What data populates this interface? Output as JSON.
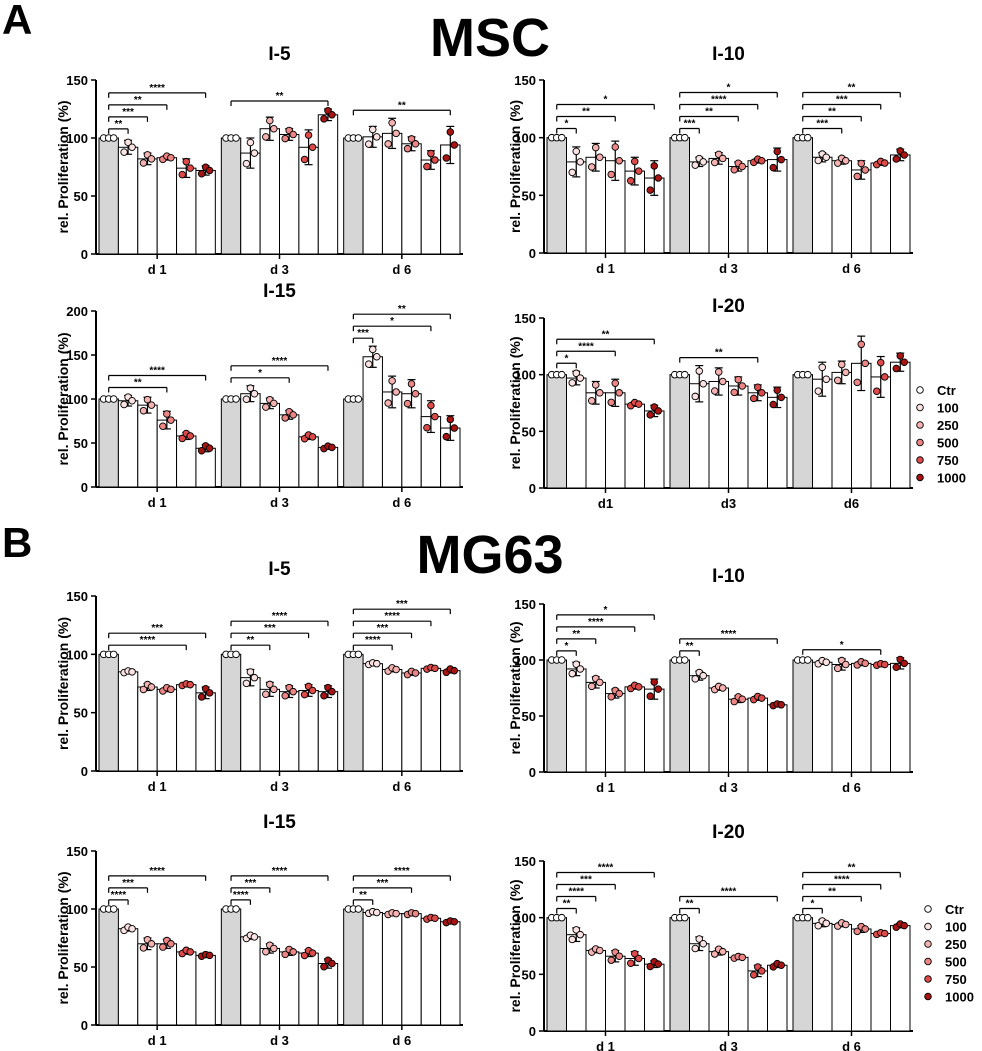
{
  "figure": {
    "panels": [
      {
        "letter": "A",
        "title": "MSC"
      },
      {
        "letter": "B",
        "title": "MG63"
      }
    ],
    "legend": {
      "labels": [
        "Ctr",
        "100",
        "250",
        "500",
        "750",
        "1000"
      ],
      "colors": [
        "#ffffff",
        "#fbe3e3",
        "#f6b1b1",
        "#ee8585",
        "#dd4a4a",
        "#a61414"
      ]
    }
  },
  "chart_data": [
    {
      "type": "bar",
      "panel": "MSC",
      "title": "I-5",
      "ylabel": "rel. Proliferation (%)",
      "ylim": [
        0,
        150
      ],
      "yticks": [
        0,
        50,
        100,
        150
      ],
      "groups": [
        "d 1",
        "d 3",
        "d 6"
      ],
      "series_names": [
        "Ctr",
        "100",
        "250",
        "500",
        "750",
        "1000"
      ],
      "values": [
        [
          100,
          92,
          82,
          83,
          74,
          72
        ],
        [
          100,
          87,
          108,
          103,
          92,
          120
        ],
        [
          100,
          101,
          104,
          95,
          81,
          94
        ]
      ],
      "errors": [
        [
          1,
          6,
          5,
          2,
          8,
          4
        ],
        [
          1,
          13,
          10,
          5,
          15,
          5
        ],
        [
          1,
          9,
          13,
          6,
          8,
          16
        ]
      ],
      "sig": [
        {
          "g": 0,
          "to": 1,
          "label": "**"
        },
        {
          "g": 0,
          "to": 2,
          "label": "***"
        },
        {
          "g": 0,
          "to": 3,
          "label": "**"
        },
        {
          "g": 0,
          "to": 5,
          "label": "****"
        },
        {
          "g": 1,
          "to": 5,
          "label": "**"
        },
        {
          "g": 2,
          "to": 5,
          "label": "**"
        }
      ]
    },
    {
      "type": "bar",
      "panel": "MSC",
      "title": "I-10",
      "ylabel": "rel. Proliferation (%)",
      "ylim": [
        0,
        150
      ],
      "yticks": [
        0,
        50,
        100,
        150
      ],
      "groups": [
        "d 1",
        "d 3",
        "d 6"
      ],
      "series_names": [
        "Ctr",
        "100",
        "250",
        "500",
        "750",
        "1000"
      ],
      "values": [
        [
          100,
          79,
          83,
          80,
          71,
          65
        ],
        [
          100,
          79,
          82,
          75,
          80,
          81
        ],
        [
          100,
          83,
          80,
          72,
          78,
          85
        ]
      ],
      "errors": [
        [
          1,
          13,
          12,
          17,
          12,
          15
        ],
        [
          1,
          4,
          5,
          4,
          2,
          10
        ],
        [
          1,
          4,
          3,
          8,
          2,
          5
        ]
      ],
      "sig": [
        {
          "g": 0,
          "to": 1,
          "label": "*"
        },
        {
          "g": 0,
          "to": 3,
          "label": "**"
        },
        {
          "g": 0,
          "to": 5,
          "label": "*"
        },
        {
          "g": 1,
          "to": 1,
          "label": "***"
        },
        {
          "g": 1,
          "to": 3,
          "label": "**"
        },
        {
          "g": 1,
          "to": 4,
          "label": "****"
        },
        {
          "g": 1,
          "to": 5,
          "label": "*"
        },
        {
          "g": 2,
          "to": 2,
          "label": "***"
        },
        {
          "g": 2,
          "to": 3,
          "label": "**"
        },
        {
          "g": 2,
          "to": 4,
          "label": "***"
        },
        {
          "g": 2,
          "to": 5,
          "label": "**"
        }
      ]
    },
    {
      "type": "bar",
      "panel": "MSC",
      "title": "I-15",
      "ylabel": "rel. Proliferation (%)",
      "ylim": [
        0,
        200
      ],
      "yticks": [
        0,
        50,
        100,
        150,
        200
      ],
      "groups": [
        "d 1",
        "d 3",
        "d 6"
      ],
      "series_names": [
        "Ctr",
        "100",
        "250",
        "500",
        "750",
        "1000"
      ],
      "values": [
        [
          100,
          98,
          93,
          76,
          58,
          44
        ],
        [
          100,
          106,
          95,
          82,
          57,
          45
        ],
        [
          100,
          148,
          108,
          106,
          80,
          67
        ]
      ],
      "errors": [
        [
          1,
          6,
          9,
          10,
          4,
          4
        ],
        [
          1,
          9,
          6,
          5,
          3,
          2
        ],
        [
          1,
          12,
          18,
          16,
          18,
          14
        ]
      ],
      "sig": [
        {
          "g": 0,
          "to": 3,
          "label": "**"
        },
        {
          "g": 0,
          "to": 5,
          "label": "****"
        },
        {
          "g": 1,
          "to": 3,
          "label": "*"
        },
        {
          "g": 1,
          "to": 5,
          "label": "****"
        },
        {
          "g": 2,
          "to": 1,
          "label": "***"
        },
        {
          "g": 2,
          "to": 4,
          "label": "*"
        },
        {
          "g": 2,
          "to": 5,
          "label": "**"
        }
      ]
    },
    {
      "type": "bar",
      "panel": "MSC",
      "title": "I-20",
      "ylabel": "rel. Proliferation (%)",
      "ylim": [
        0,
        150
      ],
      "yticks": [
        0,
        50,
        100,
        150
      ],
      "groups": [
        "d1",
        "d3",
        "d6"
      ],
      "series_names": [
        "Ctr",
        "100",
        "250",
        "500",
        "750",
        "1000"
      ],
      "values": [
        [
          100,
          97,
          84,
          84,
          74,
          68
        ],
        [
          100,
          92,
          94,
          90,
          84,
          80
        ],
        [
          100,
          96,
          102,
          110,
          98,
          111
        ]
      ],
      "errors": [
        [
          1,
          6,
          10,
          12,
          2,
          5
        ],
        [
          1,
          16,
          12,
          8,
          7,
          9
        ],
        [
          1,
          15,
          10,
          24,
          18,
          8
        ]
      ],
      "sig": [
        {
          "g": 0,
          "to": 1,
          "label": "*"
        },
        {
          "g": 0,
          "to": 3,
          "label": "****"
        },
        {
          "g": 0,
          "to": 5,
          "label": "**"
        },
        {
          "g": 1,
          "to": 4,
          "label": "**"
        }
      ]
    },
    {
      "type": "bar",
      "panel": "MG63",
      "title": "I-5",
      "ylabel": "rel. Proliferation (%)",
      "ylim": [
        0,
        150
      ],
      "yticks": [
        0,
        50,
        100,
        150
      ],
      "groups": [
        "d 1",
        "d 3",
        "d 6"
      ],
      "series_names": [
        "Ctr",
        "100",
        "250",
        "500",
        "750",
        "1000"
      ],
      "values": [
        [
          100,
          85,
          72,
          70,
          74,
          67
        ],
        [
          100,
          80,
          70,
          68,
          69,
          68
        ],
        [
          100,
          92,
          87,
          84,
          88,
          86
        ]
      ],
      "errors": [
        [
          1,
          1,
          3,
          2,
          1,
          5
        ],
        [
          1,
          7,
          6,
          5,
          5,
          5
        ],
        [
          1,
          1,
          2,
          2,
          1,
          2
        ]
      ],
      "sig": [
        {
          "g": 0,
          "to": 4,
          "label": "****"
        },
        {
          "g": 0,
          "to": 5,
          "label": "***"
        },
        {
          "g": 1,
          "to": 2,
          "label": "**"
        },
        {
          "g": 1,
          "to": 4,
          "label": "***"
        },
        {
          "g": 1,
          "to": 5,
          "label": "****"
        },
        {
          "g": 2,
          "to": 2,
          "label": "****"
        },
        {
          "g": 2,
          "to": 3,
          "label": "***"
        },
        {
          "g": 2,
          "to": 4,
          "label": "****"
        },
        {
          "g": 2,
          "to": 5,
          "label": "***"
        }
      ]
    },
    {
      "type": "bar",
      "panel": "MG63",
      "title": "I-10",
      "ylabel": "rel. Proliferation (%)",
      "ylim": [
        0,
        150
      ],
      "yticks": [
        0,
        50,
        100,
        150
      ],
      "groups": [
        "d 1",
        "d 3",
        "d 6"
      ],
      "series_names": [
        "Ctr",
        "100",
        "250",
        "500",
        "750",
        "1000"
      ],
      "values": [
        [
          100,
          92,
          80,
          70,
          76,
          74
        ],
        [
          100,
          86,
          75,
          65,
          66,
          60
        ],
        [
          100,
          98,
          96,
          97,
          96,
          97
        ]
      ],
      "errors": [
        [
          1,
          6,
          5,
          4,
          2,
          9
        ],
        [
          1,
          4,
          2,
          3,
          2,
          1
        ],
        [
          1,
          2,
          5,
          2,
          1,
          5
        ]
      ],
      "sig": [
        {
          "g": 0,
          "to": 1,
          "label": "*"
        },
        {
          "g": 0,
          "to": 2,
          "label": "**"
        },
        {
          "g": 0,
          "to": 4,
          "label": "****"
        },
        {
          "g": 0,
          "to": 5,
          "label": "*"
        },
        {
          "g": 1,
          "to": 1,
          "label": "**"
        },
        {
          "g": 1,
          "to": 5,
          "label": "****"
        },
        {
          "g": 2,
          "to": 4,
          "label": "*"
        }
      ]
    },
    {
      "type": "bar",
      "panel": "MG63",
      "title": "I-15",
      "ylabel": "rel. Proliferation (%)",
      "ylim": [
        0,
        150
      ],
      "yticks": [
        0,
        50,
        100,
        150
      ],
      "groups": [
        "d 1",
        "d 3",
        "d 6"
      ],
      "series_names": [
        "Ctr",
        "100",
        "250",
        "500",
        "750",
        "1000"
      ],
      "values": [
        [
          100,
          83,
          70,
          70,
          63,
          60
        ],
        [
          100,
          76,
          66,
          63,
          62,
          53
        ],
        [
          100,
          97,
          96,
          96,
          92,
          89
        ]
      ],
      "errors": [
        [
          1,
          2,
          5,
          4,
          2,
          1
        ],
        [
          1,
          2,
          4,
          3,
          3,
          4
        ],
        [
          1,
          1,
          1,
          1,
          1,
          1
        ]
      ],
      "sig": [
        {
          "g": 0,
          "to": 1,
          "label": "****"
        },
        {
          "g": 0,
          "to": 2,
          "label": "***"
        },
        {
          "g": 0,
          "to": 5,
          "label": "****"
        },
        {
          "g": 1,
          "to": 1,
          "label": "****"
        },
        {
          "g": 1,
          "to": 2,
          "label": "***"
        },
        {
          "g": 1,
          "to": 5,
          "label": "****"
        },
        {
          "g": 2,
          "to": 1,
          "label": "**"
        },
        {
          "g": 2,
          "to": 3,
          "label": "***"
        },
        {
          "g": 2,
          "to": 5,
          "label": "****"
        }
      ]
    },
    {
      "type": "bar",
      "panel": "MG63",
      "title": "I-20",
      "ylabel": "rel. Proliferation (%)",
      "ylim": [
        0,
        150
      ],
      "yticks": [
        0,
        50,
        100,
        150
      ],
      "groups": [
        "d 1",
        "d 3",
        "d 6"
      ],
      "series_names": [
        "Ctr",
        "100",
        "250",
        "500",
        "750",
        "1000"
      ],
      "values": [
        [
          100,
          85,
          71,
          66,
          64,
          59
        ],
        [
          100,
          77,
          70,
          65,
          53,
          58
        ],
        [
          100,
          95,
          94,
          90,
          86,
          93
        ]
      ],
      "errors": [
        [
          1,
          6,
          2,
          5,
          6,
          3
        ],
        [
          1,
          6,
          3,
          1,
          5,
          2
        ],
        [
          1,
          3,
          2,
          3,
          1,
          2
        ]
      ],
      "sig": [
        {
          "g": 0,
          "to": 1,
          "label": "**"
        },
        {
          "g": 0,
          "to": 2,
          "label": "****"
        },
        {
          "g": 0,
          "to": 3,
          "label": "***"
        },
        {
          "g": 0,
          "to": 5,
          "label": "****"
        },
        {
          "g": 1,
          "to": 1,
          "label": "**"
        },
        {
          "g": 1,
          "to": 5,
          "label": "****"
        },
        {
          "g": 2,
          "to": 1,
          "label": "*"
        },
        {
          "g": 2,
          "to": 3,
          "label": "**"
        },
        {
          "g": 2,
          "to": 4,
          "label": "****"
        },
        {
          "g": 2,
          "to": 5,
          "label": "**"
        }
      ]
    }
  ]
}
